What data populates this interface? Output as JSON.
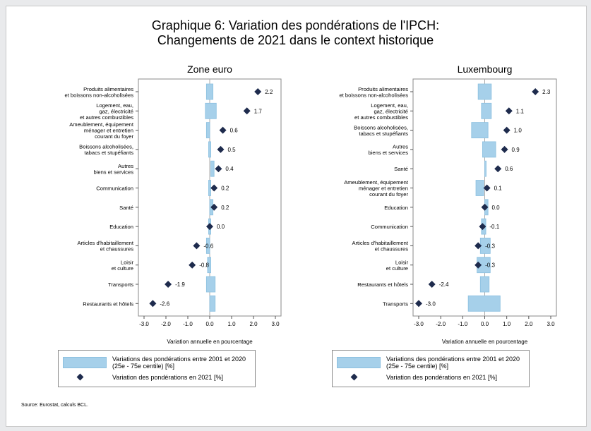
{
  "title_line1": "Graphique 6: Variation des pondérations de l'IPCH:",
  "title_line2": "Changements de 2021 dans le context historique",
  "source": "Source: Eurostat, calculs BCL.",
  "colors": {
    "range_fill": "#a6d0ea",
    "range_stroke": "#8cc0e0",
    "marker": "#1e2b4d"
  },
  "chart_data": [
    {
      "type": "range-dot",
      "title": "Zone euro",
      "xlabel": "Variation annuelle en pourcentage",
      "xlim": [
        -3.0,
        3.0
      ],
      "xticks": [
        "-3.0",
        "-2.0",
        "-1.0",
        "0.0",
        "1.0",
        "2.0",
        "3.0"
      ],
      "categories": [
        [
          "Produits alimentaires",
          "et boissons non-alcoholisées"
        ],
        [
          "Logement, eau,",
          "gaz, électricité",
          "et autres combustibles"
        ],
        [
          "Ameublement, équipement",
          "ménager et entretien",
          "courant du foyer"
        ],
        [
          "Boissons alcoholisées,",
          "tabacs et stupéfiants"
        ],
        [
          "Autres",
          "biens et services"
        ],
        [
          "Communication"
        ],
        [
          "Santé"
        ],
        [
          "Education"
        ],
        [
          "Articles d'habitaillement",
          "et chaussures"
        ],
        [
          "Loisir",
          "et culture"
        ],
        [
          "Transports"
        ],
        [
          "Restaurants et hôtels"
        ]
      ],
      "values_2021": [
        2.2,
        1.7,
        0.6,
        0.5,
        0.4,
        0.2,
        0.2,
        0.0,
        -0.6,
        -0.8,
        -1.9,
        -2.6
      ],
      "value_labels": [
        "2.2",
        "1.7",
        "0.6",
        "0.5",
        "0.4",
        "0.2",
        "0.2",
        "0.0",
        "-0.6",
        "-0.8",
        "-1.9",
        "-2.6"
      ],
      "range_2001_2020": [
        [
          -0.15,
          0.15
        ],
        [
          -0.2,
          0.3
        ],
        [
          -0.15,
          0.0
        ],
        [
          -0.05,
          0.05
        ],
        [
          0.05,
          0.2
        ],
        [
          -0.05,
          0.05
        ],
        [
          0.0,
          0.15
        ],
        [
          -0.05,
          0.05
        ],
        [
          -0.15,
          0.0
        ],
        [
          -0.1,
          0.05
        ],
        [
          -0.15,
          0.25
        ],
        [
          0.0,
          0.25
        ]
      ]
    },
    {
      "type": "range-dot",
      "title": "Luxembourg",
      "xlabel": "Variation annuelle en pourcentage",
      "xlim": [
        -3.0,
        3.0
      ],
      "xticks": [
        "-3.0",
        "-2.0",
        "-1.0",
        "0.0",
        "1.0",
        "2.0",
        "3.0"
      ],
      "categories": [
        [
          "Produits alimentaires",
          "et boissons non-alcoholisées"
        ],
        [
          "Logement, eau,",
          "gaz, électricité",
          "et autres combustibles"
        ],
        [
          "Boissons alcoholisées,",
          "tabacs et stupéfiants"
        ],
        [
          "Autres",
          "biens et services"
        ],
        [
          "Santé"
        ],
        [
          "Ameublement, équipement",
          "ménager et entretien",
          "courant du foyer"
        ],
        [
          "Education"
        ],
        [
          "Communication"
        ],
        [
          "Articles d'habitaillement",
          "et chaussures"
        ],
        [
          "Loisir",
          "et culture"
        ],
        [
          "Restaurants et hôtels"
        ],
        [
          "Transports"
        ]
      ],
      "values_2021": [
        2.3,
        1.1,
        1.0,
        0.9,
        0.6,
        0.1,
        0.0,
        -0.1,
        -0.3,
        -0.3,
        -2.4,
        -3.0
      ],
      "value_labels": [
        "2.3",
        "1.1",
        "1.0",
        "0.9",
        "0.6",
        "0.1",
        "0.0",
        "-0.1",
        "-0.3",
        "-0.3",
        "-2.4",
        "-3.0"
      ],
      "range_2001_2020": [
        [
          -0.3,
          0.3
        ],
        [
          -0.15,
          0.3
        ],
        [
          -0.6,
          0.15
        ],
        [
          -0.1,
          0.5
        ],
        [
          0.0,
          0.05
        ],
        [
          -0.4,
          -0.05
        ],
        [
          0.0,
          0.15
        ],
        [
          -0.15,
          0.05
        ],
        [
          -0.2,
          0.25
        ],
        [
          -0.35,
          0.25
        ],
        [
          -0.2,
          0.2
        ],
        [
          -0.75,
          0.7
        ]
      ]
    }
  ],
  "legend": {
    "range_label_line1": "Variations des pondérations entre 2001 et 2020",
    "range_label_line2": "(25e - 75e centile) [%]",
    "dot_label": "Variation des pondérations en 2021 [%]"
  }
}
